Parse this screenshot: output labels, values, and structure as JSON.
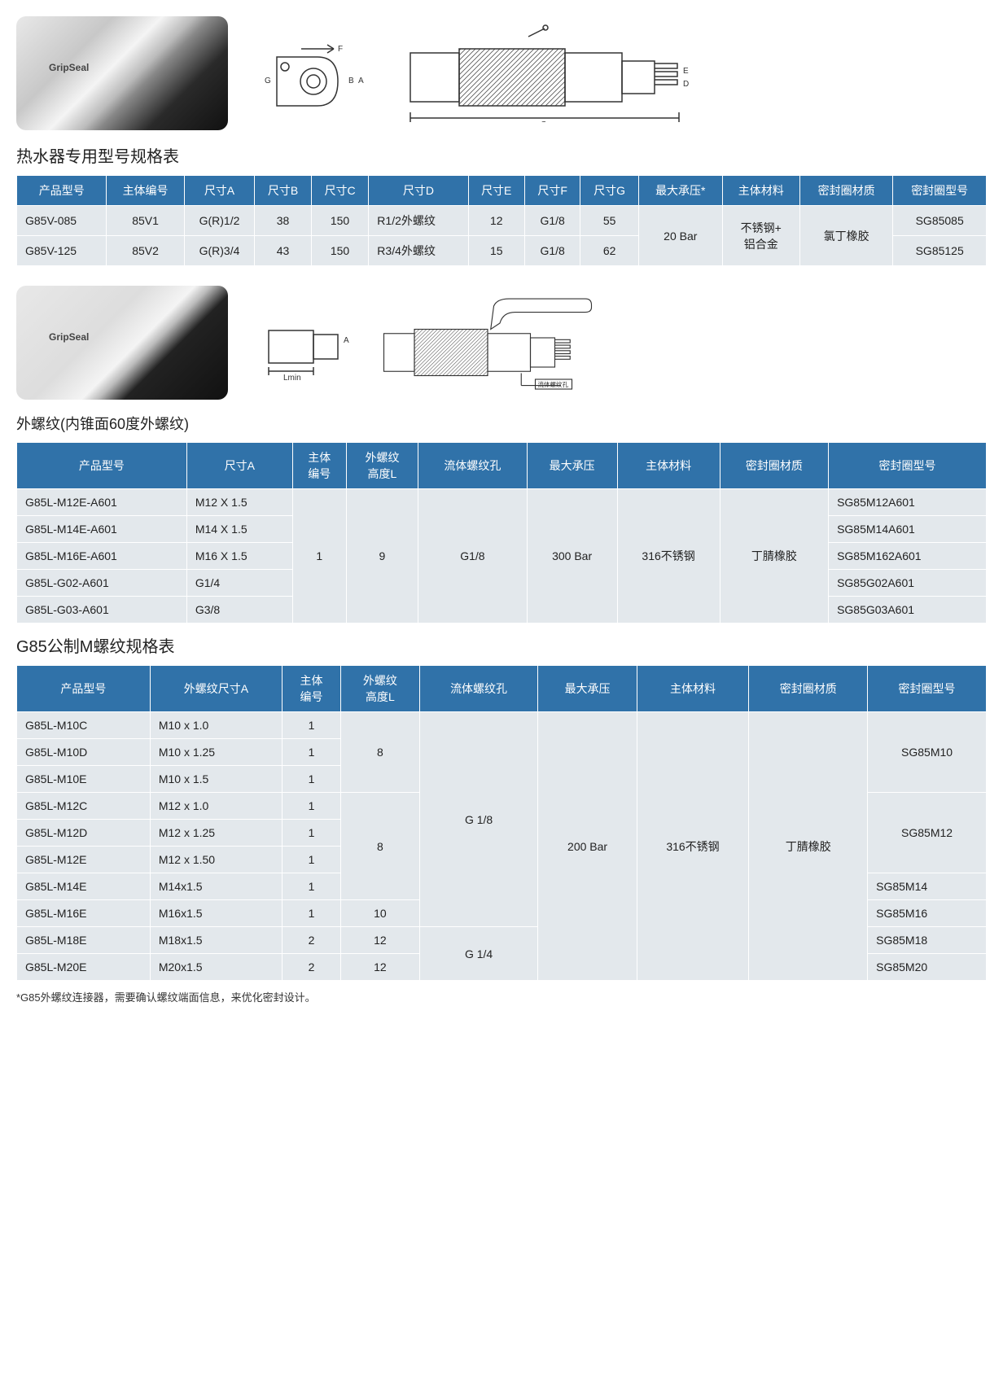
{
  "colors": {
    "header_bg": "#3072a9",
    "header_fg": "#ffffff",
    "cell_bg": "#e3e8ec",
    "cell_fg": "#222222",
    "border": "#ffffff",
    "page_bg": "#ffffff",
    "title_color": "#222222",
    "footnote_color": "#333333"
  },
  "typography": {
    "base_font": "Microsoft YaHei, Arial, sans-serif",
    "base_size_pt": 14,
    "title_size_pt": 20,
    "subtitle_size_pt": 18,
    "footnote_size_pt": 13
  },
  "section1": {
    "title": "热水器专用型号规格表",
    "headers": [
      "产品型号",
      "主体编号",
      "尺寸A",
      "尺寸B",
      "尺寸C",
      "尺寸D",
      "尺寸E",
      "尺寸F",
      "尺寸G",
      "最大承压*",
      "主体材料",
      "密封圈材质",
      "密封圈型号"
    ],
    "rows": [
      {
        "model": "G85V-085",
        "body_no": "85V1",
        "A": "G(R)1/2",
        "B": "38",
        "C": "150",
        "D": "R1/2外螺纹",
        "E": "12",
        "F": "G1/8",
        "G": "55",
        "seal_model": "SG85085"
      },
      {
        "model": "G85V-125",
        "body_no": "85V2",
        "A": "G(R)3/4",
        "B": "43",
        "C": "150",
        "D": "R3/4外螺纹",
        "E": "15",
        "F": "G1/8",
        "G": "62",
        "seal_model": "SG85125"
      }
    ],
    "merged": {
      "max_pressure": "20 Bar",
      "body_material": "不锈钢+\n铝合金",
      "seal_material": "氯丁橡胶"
    }
  },
  "section2": {
    "subtitle": "外螺纹(内锥面60度外螺纹)",
    "headers": [
      "产品型号",
      "尺寸A",
      "主体\n编号",
      "外螺纹\n高度L",
      "流体螺纹孔",
      "最大承压",
      "主体材料",
      "密封圈材质",
      "密封圈型号"
    ],
    "rows": [
      {
        "model": "G85L-M12E-A601",
        "A": "M12 X 1.5",
        "seal_model": "SG85M12A601"
      },
      {
        "model": "G85L-M14E-A601",
        "A": "M14 X 1.5",
        "seal_model": "SG85M14A601"
      },
      {
        "model": "G85L-M16E-A601",
        "A": "M16 X 1.5",
        "seal_model": "SG85M162A601"
      },
      {
        "model": "G85L-G02-A601",
        "A": "G1/4",
        "seal_model": "SG85G02A601"
      },
      {
        "model": "G85L-G03-A601",
        "A": "G3/8",
        "seal_model": "SG85G03A601"
      }
    ],
    "merged": {
      "body_no": "1",
      "height_L": "9",
      "fluid_hole": "G1/8",
      "max_pressure": "300 Bar",
      "body_material": "316不锈钢",
      "seal_material": "丁腈橡胶"
    }
  },
  "section3": {
    "title": "G85公制M螺纹规格表",
    "headers": [
      "产品型号",
      "外螺纹尺寸A",
      "主体\n编号",
      "外螺纹\n高度L",
      "流体螺纹孔",
      "最大承压",
      "主体材料",
      "密封圈材质",
      "密封圈型号"
    ],
    "groups": [
      {
        "height_L": "8",
        "fluid_hole": "G 1/8",
        "seal_model": "SG85M10",
        "rows": [
          {
            "model": "G85L-M10C",
            "A": "M10 x 1.0",
            "body_no": "1"
          },
          {
            "model": "G85L-M10D",
            "A": "M10 x 1.25",
            "body_no": "1"
          },
          {
            "model": "G85L-M10E",
            "A": "M10 x 1.5",
            "body_no": "1"
          }
        ]
      },
      {
        "height_L": "8",
        "seal_model": "SG85M12",
        "rows": [
          {
            "model": "G85L-M12C",
            "A": "M12 x 1.0",
            "body_no": "1"
          },
          {
            "model": "G85L-M12D",
            "A": "M12 x 1.25",
            "body_no": "1"
          },
          {
            "model": "G85L-M12E",
            "A": "M12 x 1.50",
            "body_no": "1"
          }
        ]
      },
      {
        "rows_single": [
          {
            "model": "G85L-M14E",
            "A": "M14x1.5",
            "body_no": "1",
            "height_L_span": null,
            "seal_model": "SG85M14"
          },
          {
            "model": "G85L-M16E",
            "A": "M16x1.5",
            "body_no": "1",
            "height_L": "10",
            "seal_model": "SG85M16"
          },
          {
            "model": "G85L-M18E",
            "A": "M18x1.5",
            "body_no": "2",
            "height_L": "12",
            "fluid_hole": "G 1/4",
            "seal_model": "SG85M18"
          },
          {
            "model": "G85L-M20E",
            "A": "M20x1.5",
            "body_no": "2",
            "height_L": "12",
            "seal_model": "SG85M20"
          }
        ]
      }
    ],
    "merged": {
      "max_pressure": "200 Bar",
      "body_material": "316不锈钢",
      "seal_material": "丁腈橡胶"
    }
  },
  "footnote": "*G85外螺纹连接器，需要确认螺纹端面信息，来优化密封设计。",
  "drawing_labels": {
    "dim_A": "A",
    "dim_B": "B",
    "dim_C": "C",
    "dim_D": "D",
    "dim_E": "E",
    "dim_F": "F",
    "dim_G": "G",
    "Lmin": "Lmin",
    "fluid_hole_label": "流体螺纹孔"
  }
}
